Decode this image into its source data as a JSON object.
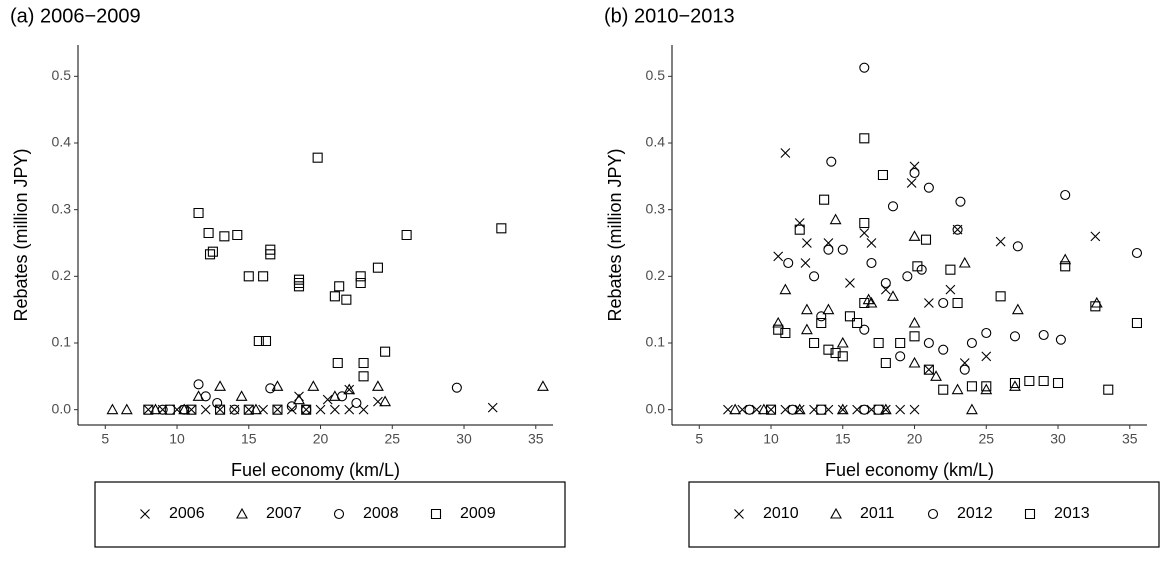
{
  "chart_data": [
    {
      "type": "scatter",
      "title": "(a) 2006−2009",
      "xlabel": "Fuel economy (km/L)",
      "ylabel": "Rebates (million JPY)",
      "xlim": [
        3.1,
        36.2
      ],
      "ylim": [
        -0.023,
        0.547
      ],
      "xticks": [
        5,
        10,
        15,
        20,
        25,
        30,
        35
      ],
      "yticks": [
        {
          "value": 0,
          "label": "0.0"
        },
        0.1,
        0.2,
        0.3,
        0.4,
        0.5
      ],
      "legend": "bottom",
      "series": [
        {
          "name": "2006",
          "marker": "x",
          "color": "#000000",
          "x": [
            8,
            9,
            10,
            11,
            12,
            13,
            14,
            15,
            16,
            17,
            18,
            19,
            20,
            21,
            22,
            23,
            18.5,
            20.5,
            22,
            24,
            32
          ],
          "values": [
            0,
            0,
            0,
            0,
            0,
            0,
            0,
            0,
            0,
            0,
            0,
            0,
            0,
            0,
            0,
            0,
            0.02,
            0.015,
            0.03,
            0.012,
            0.003
          ]
        },
        {
          "name": "2007",
          "marker": "triangle",
          "color": "#000000",
          "x": [
            5.5,
            6.5,
            8.5,
            10.5,
            11.5,
            13,
            14.5,
            15.5,
            17,
            18.5,
            19.5,
            21,
            22,
            24,
            24.5,
            35.5
          ],
          "values": [
            0,
            0,
            0,
            0,
            0.02,
            0.035,
            0.02,
            0,
            0.035,
            0.015,
            0.035,
            0.02,
            0.03,
            0.035,
            0.012,
            0.035
          ]
        },
        {
          "name": "2008",
          "marker": "circle",
          "color": "#000000",
          "x": [
            9,
            10.5,
            11.5,
            12,
            12.8,
            14,
            16.5,
            18,
            19,
            21.5,
            22.5,
            29.5
          ],
          "values": [
            0,
            0,
            0.038,
            0.02,
            0.01,
            0,
            0.032,
            0.005,
            0,
            0.02,
            0.01,
            0.033
          ]
        },
        {
          "name": "2009",
          "marker": "square",
          "color": "#000000",
          "x": [
            8,
            9.5,
            11,
            13,
            15,
            17,
            19,
            11.5,
            12.2,
            12.3,
            12.5,
            13.3,
            14.2,
            15,
            15.7,
            16.2,
            16,
            16.5,
            16.5,
            18.5,
            18.5,
            18.5,
            19.8,
            21,
            21.3,
            21.2,
            21.8,
            22.8,
            22.8,
            23,
            23,
            24,
            24.5,
            26,
            32.6
          ],
          "values": [
            0,
            0,
            0,
            0,
            0,
            0,
            0,
            0.295,
            0.265,
            0.233,
            0.237,
            0.26,
            0.262,
            0.2,
            0.103,
            0.103,
            0.2,
            0.233,
            0.24,
            0.185,
            0.195,
            0.19,
            0.378,
            0.17,
            0.185,
            0.07,
            0.165,
            0.19,
            0.2,
            0.05,
            0.07,
            0.213,
            0.087,
            0.262,
            0.272
          ]
        }
      ]
    },
    {
      "type": "scatter",
      "title": "(b) 2010−2013",
      "xlabel": "Fuel economy (km/L)",
      "ylabel": "Rebates (million JPY)",
      "xlim": [
        3.1,
        36.2
      ],
      "ylim": [
        -0.023,
        0.547
      ],
      "xticks": [
        5,
        10,
        15,
        20,
        25,
        30,
        35
      ],
      "yticks": [
        {
          "value": 0,
          "label": "0.0"
        },
        0.1,
        0.2,
        0.3,
        0.4,
        0.5
      ],
      "legend": "bottom",
      "series": [
        {
          "name": "2010",
          "marker": "x",
          "color": "#000000",
          "x": [
            7,
            8,
            9,
            10,
            11,
            12,
            13,
            14,
            15,
            16,
            17,
            18,
            19,
            20,
            11,
            12,
            10.5,
            12.5,
            12.4,
            14,
            15.5,
            16.5,
            17,
            20,
            19.8,
            18,
            21,
            22.5,
            23,
            23.5,
            25,
            26,
            32.6,
            21
          ],
          "values": [
            0,
            0,
            0,
            0,
            0,
            0,
            0,
            0,
            0,
            0,
            0,
            0,
            0,
            0,
            0.385,
            0.28,
            0.23,
            0.25,
            0.22,
            0.25,
            0.19,
            0.265,
            0.25,
            0.365,
            0.34,
            0.18,
            0.16,
            0.18,
            0.27,
            0.07,
            0.08,
            0.252,
            0.26,
            0.06
          ]
        },
        {
          "name": "2011",
          "marker": "triangle",
          "color": "#000000",
          "x": [
            7.5,
            9.5,
            12,
            15,
            18,
            11,
            10.5,
            12.5,
            12.5,
            14.5,
            14,
            15,
            16.8,
            17,
            18.5,
            20,
            20,
            20,
            21.5,
            23.5,
            23,
            24,
            25,
            27,
            27.2,
            30.5,
            32.7
          ],
          "values": [
            0,
            0,
            0,
            0,
            0,
            0.18,
            0.13,
            0.15,
            0.12,
            0.285,
            0.15,
            0.1,
            0.165,
            0.16,
            0.17,
            0.26,
            0.13,
            0.07,
            0.05,
            0.22,
            0.03,
            0,
            0.03,
            0.035,
            0.15,
            0.225,
            0.16
          ]
        },
        {
          "name": "2012",
          "marker": "circle",
          "color": "#000000",
          "x": [
            8.5,
            11.5,
            16.5,
            16.5,
            14.2,
            20,
            21,
            23.2,
            30.5,
            35.5,
            27.2,
            18.5,
            11.2,
            13,
            14,
            15,
            17,
            18,
            19.5,
            20.5,
            22,
            23,
            13.5,
            16.5,
            19,
            21,
            22,
            24,
            25,
            27,
            29,
            30.2,
            23.5
          ],
          "values": [
            0,
            0,
            0,
            0.513,
            0.372,
            0.355,
            0.333,
            0.312,
            0.322,
            0.235,
            0.245,
            0.305,
            0.22,
            0.2,
            0.24,
            0.24,
            0.22,
            0.19,
            0.2,
            0.21,
            0.16,
            0.27,
            0.14,
            0.12,
            0.08,
            0.1,
            0.09,
            0.1,
            0.115,
            0.11,
            0.112,
            0.105,
            0.06
          ]
        },
        {
          "name": "2013",
          "marker": "square",
          "color": "#000000",
          "x": [
            10,
            13.5,
            17.5,
            16.5,
            17.8,
            16.5,
            20.8,
            20.2,
            10.5,
            11,
            13,
            13.5,
            14,
            14.5,
            15,
            15.5,
            16,
            16.5,
            17.5,
            18,
            19,
            20,
            21,
            22,
            22.5,
            23,
            24,
            25,
            26,
            27,
            28,
            29,
            30,
            30.5,
            32.6,
            33.5,
            35.5,
            12,
            13.7
          ],
          "values": [
            0,
            0,
            0,
            0.407,
            0.352,
            0.28,
            0.255,
            0.215,
            0.12,
            0.115,
            0.1,
            0.13,
            0.09,
            0.085,
            0.08,
            0.14,
            0.13,
            0.16,
            0.1,
            0.07,
            0.1,
            0.11,
            0.06,
            0.03,
            0.21,
            0.16,
            0.035,
            0.035,
            0.17,
            0.04,
            0.043,
            0.043,
            0.04,
            0.215,
            0.155,
            0.03,
            0.13,
            0.27,
            0.315
          ]
        }
      ]
    }
  ]
}
